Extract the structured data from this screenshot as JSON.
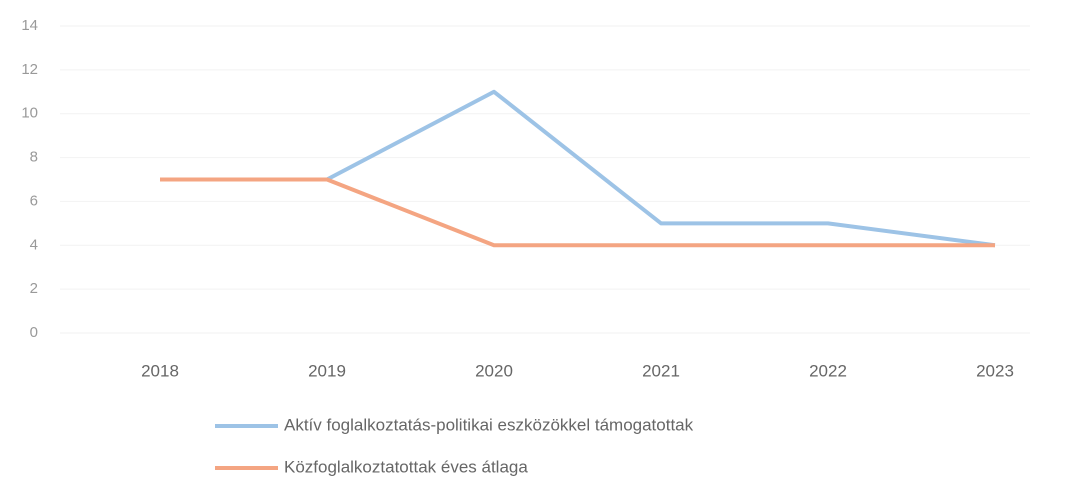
{
  "chart_data": {
    "type": "line",
    "categories": [
      "2018",
      "2019",
      "2020",
      "2021",
      "2022",
      "2023"
    ],
    "series": [
      {
        "name": "Aktív foglalkoztatás-politikai eszközökkel támogatottak",
        "color": "#9dc3e6",
        "values": [
          7,
          7,
          11,
          5,
          5,
          4
        ]
      },
      {
        "name": "Közfoglalkoztatottak éves átlaga",
        "color": "#f4a582",
        "values": [
          7,
          7,
          4,
          4,
          4,
          4
        ]
      }
    ],
    "ylim": [
      0,
      14
    ],
    "yticks": [
      0,
      2,
      4,
      6,
      8,
      10,
      12,
      14
    ],
    "grid": true,
    "legend": "bottom"
  }
}
